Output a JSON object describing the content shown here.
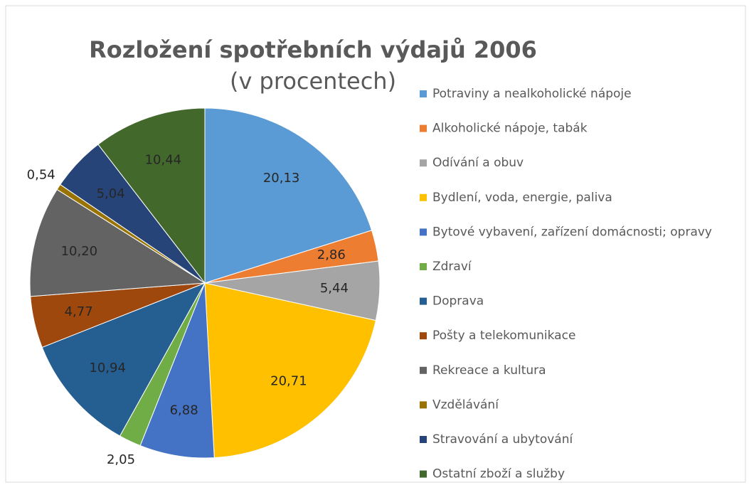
{
  "chart_data": {
    "type": "pie",
    "title": "Rozložení spotřebních výdajů 2006",
    "subtitle": "(v procentech)",
    "categories": [
      "Potraviny a nealkoholické nápoje",
      "Alkoholické nápoje, tabák",
      "Odívání a obuv",
      "Bydlení, voda, energie, paliva",
      "Bytové vybavení, zařízení domácnosti; opravy",
      "Zdraví",
      "Doprava",
      "Pošty a telekomunikace",
      "Rekreace a kultura",
      "Vzdělávání",
      "Stravování a ubytování",
      "Ostatní zboží a služby"
    ],
    "values": [
      20.13,
      2.86,
      5.44,
      20.71,
      6.88,
      2.05,
      10.94,
      4.77,
      10.2,
      0.54,
      5.04,
      10.44
    ],
    "value_labels": [
      "20,13",
      "2,86",
      "5,44",
      "20,71",
      "6,88",
      "2,05",
      "10,94",
      "4,77",
      "10,20",
      "0,54",
      "5,04",
      "10,44"
    ],
    "colors": [
      "#5b9bd5",
      "#ed7d31",
      "#a5a5a5",
      "#ffc000",
      "#4472c4",
      "#70ad47",
      "#255e91",
      "#9e480e",
      "#636363",
      "#997300",
      "#264478",
      "#43682b"
    ],
    "legend": "right"
  }
}
